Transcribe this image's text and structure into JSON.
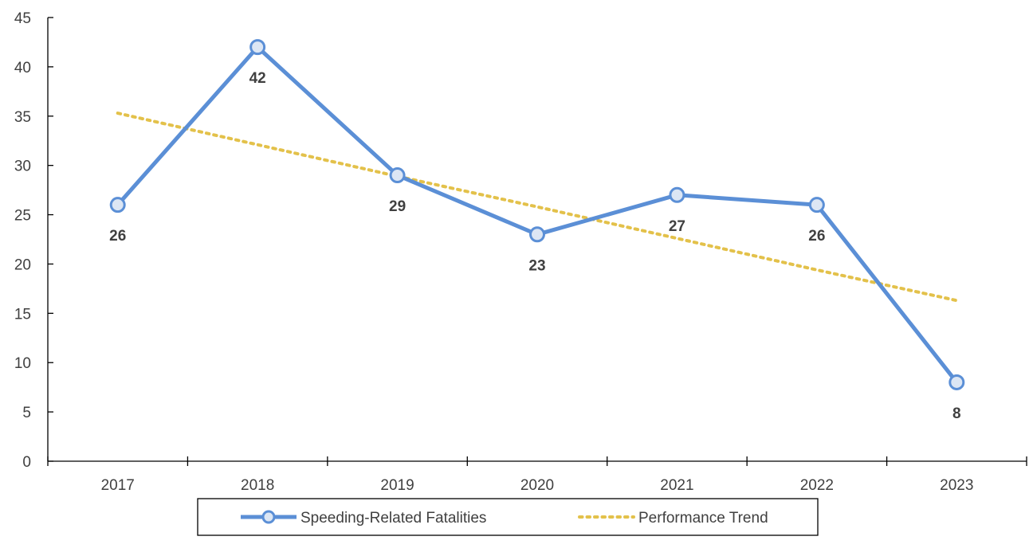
{
  "chart_data": {
    "type": "line",
    "title": "",
    "xlabel": "",
    "ylabel": "",
    "categories": [
      "2017",
      "2018",
      "2019",
      "2020",
      "2021",
      "2022",
      "2023"
    ],
    "ylim": [
      0,
      45
    ],
    "yticks": [
      0,
      5,
      10,
      15,
      20,
      25,
      30,
      35,
      40,
      45
    ],
    "legend_position": "bottom",
    "grid": false,
    "series": [
      {
        "name": "Speeding-Related Fatalities",
        "values": [
          26,
          42,
          29,
          23,
          27,
          26,
          8
        ],
        "data_labels": [
          "26",
          "42",
          "29",
          "23",
          "27",
          "26",
          "8"
        ],
        "color": "#5B8FD6",
        "marker_fill": "#DCE6F4",
        "style": "solid-with-circle-markers"
      },
      {
        "name": "Performance Trend",
        "values": [
          35.3,
          32.1,
          28.9,
          25.8,
          22.6,
          19.4,
          16.3
        ],
        "color": "#E3C14A",
        "style": "dotted"
      }
    ]
  }
}
